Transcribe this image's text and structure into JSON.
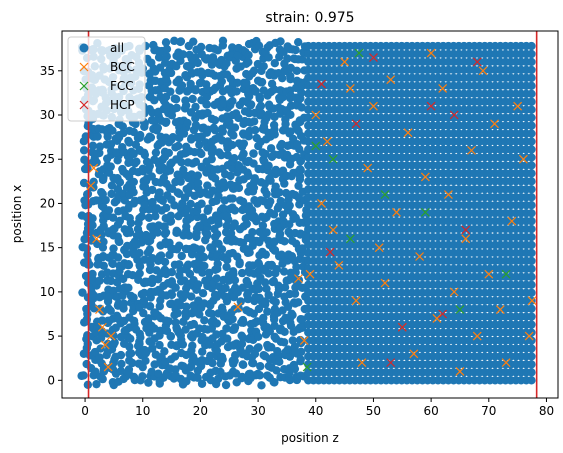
{
  "chart_data": {
    "type": "scatter",
    "title": "strain: 0.975",
    "xlabel": "position z",
    "ylabel": "position x",
    "xlim": [
      -4,
      82
    ],
    "ylim": [
      -2,
      39.5
    ],
    "xticks": [
      0,
      10,
      20,
      30,
      40,
      50,
      60,
      70,
      80
    ],
    "yticks": [
      0,
      5,
      10,
      15,
      20,
      25,
      30,
      35
    ],
    "xtick_labels": [
      "0",
      "10",
      "20",
      "30",
      "40",
      "50",
      "60",
      "70",
      "80"
    ],
    "ytick_labels": [
      "0",
      "5",
      "10",
      "15",
      "20",
      "25",
      "30",
      "35"
    ],
    "legend": {
      "placement": "upper-left",
      "entries": [
        "all",
        "BCC",
        "FCC",
        "HCP"
      ]
    },
    "series": [
      {
        "name": "all",
        "marker": "circle",
        "color": "#1f77b4",
        "description_of_extent": {
          "x_range": [
            0,
            78
          ],
          "y_range": [
            0,
            38
          ]
        }
      },
      {
        "name": "BCC",
        "marker": "x",
        "color": "#ff7f0e",
        "x": [
          1.0,
          1.5,
          2.0,
          2.5,
          3.0,
          3.5,
          4.0,
          4.5,
          26.5,
          37,
          38,
          39,
          40,
          41,
          42,
          43,
          44,
          45,
          46,
          47,
          48,
          49,
          50,
          51,
          52,
          53,
          54,
          55,
          56,
          57,
          58,
          59,
          60,
          61,
          62,
          63,
          64,
          65,
          66,
          67,
          68,
          69,
          70,
          71,
          72,
          73,
          74,
          75,
          76,
          77,
          77.5
        ],
        "y": [
          22,
          24,
          16,
          8,
          6,
          4,
          1.5,
          5,
          8.3,
          11.5,
          4.5,
          12,
          30,
          20,
          27,
          17,
          13,
          36,
          33,
          9,
          2,
          24,
          31,
          15,
          11,
          34,
          19,
          6,
          28,
          3,
          14,
          23,
          37,
          7,
          33,
          21,
          10,
          1,
          16,
          26,
          5,
          35,
          12,
          29,
          8,
          2,
          18,
          31,
          25,
          5,
          9
        ]
      },
      {
        "name": "FCC",
        "marker": "x",
        "color": "#2ca02c",
        "x": [
          38.5,
          40,
          43,
          46,
          47.5,
          52,
          59,
          65,
          73
        ],
        "y": [
          1.5,
          26.5,
          25,
          16,
          37,
          21,
          19,
          8,
          12
        ]
      },
      {
        "name": "HCP",
        "marker": "x",
        "color": "#d62728",
        "x": [
          41,
          42.5,
          47,
          50,
          53,
          55,
          60,
          62,
          64,
          66,
          68
        ],
        "y": [
          33.5,
          14.5,
          29,
          36.5,
          2,
          6,
          31,
          7.5,
          30,
          17,
          36
        ]
      }
    ],
    "reference_lines": [
      {
        "orientation": "vertical",
        "x": 0.6,
        "color": "#d62728"
      },
      {
        "orientation": "vertical",
        "x": 78.3,
        "color": "#d62728"
      }
    ],
    "grid": false
  }
}
